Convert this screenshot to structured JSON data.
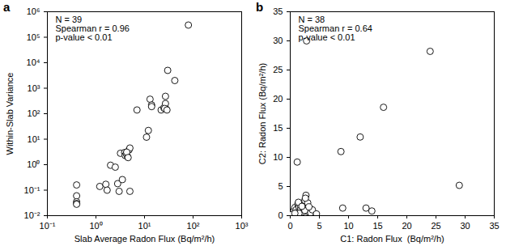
{
  "chart_data": [
    {
      "type": "scatter",
      "title": "a",
      "log": true,
      "marker": "open circle",
      "color": "#000000",
      "x_label": "Slab Average Radon Flux (Bq/m²/h)",
      "y_label": "Within-Slab Variance",
      "annotations": [
        "N = 39",
        "Spearman r = 0.96",
        "p-value < 0.01"
      ],
      "x": [
        0.4,
        0.4,
        0.4,
        0.4,
        0.4,
        1.2,
        1.6,
        1.7,
        2,
        2.5,
        2.8,
        3,
        3.2,
        3.5,
        3.9,
        4,
        4.2,
        4.5,
        4.8,
        5,
        5,
        7,
        11,
        12,
        13,
        14,
        22,
        25,
        27,
        27,
        28,
        30,
        42,
        80,
        4.3,
        4.6,
        14,
        26,
        29
      ],
      "values": [
        0.16,
        0.06,
        0.035,
        0.03,
        0.028,
        0.14,
        0.17,
        0.1,
        0.95,
        0.8,
        0.18,
        0.09,
        2.8,
        0.26,
        3,
        2.3,
        2.7,
        2,
        3.8,
        4.5,
        0.09,
        140,
        12,
        22,
        370,
        220,
        140,
        170,
        250,
        480,
        150,
        5000,
        2000,
        300000,
        3.1,
        1.9,
        190,
        160,
        140
      ],
      "xlim": [
        0.1,
        1000
      ],
      "xticks": [
        {
          "value": 0.1,
          "label": "10⁻¹"
        },
        {
          "value": 1,
          "label": "10⁰"
        },
        {
          "value": 10,
          "label": "10¹"
        },
        {
          "value": 100,
          "label": "10²"
        },
        {
          "value": 1000,
          "label": "10³"
        }
      ],
      "ylim": [
        0.01,
        1000000
      ],
      "yticks": [
        {
          "value": 0.01,
          "label": "10⁻²"
        },
        {
          "value": 0.1,
          "label": "10⁻¹"
        },
        {
          "value": 1,
          "label": "10⁰"
        },
        {
          "value": 10,
          "label": "10¹"
        },
        {
          "value": 100,
          "label": "10²"
        },
        {
          "value": 1000,
          "label": "10³"
        },
        {
          "value": 10000,
          "label": "10⁴"
        },
        {
          "value": 100000,
          "label": "10⁵"
        },
        {
          "value": 1000000,
          "label": "10⁶"
        }
      ]
    },
    {
      "type": "scatter",
      "title": "b",
      "marker": "open circle",
      "color": "#000000",
      "x_label": "C1: Radon Flux  (Bq/m²/h)",
      "y_label": "C2: Radon Flux (Bq/m²/h)",
      "annotations": [
        "N = 38",
        "Spearman r = 0.64",
        "p-value < 0.01"
      ],
      "x": [
        0.5,
        0.6,
        0.8,
        1,
        1.2,
        1.3,
        1.5,
        1.8,
        2,
        2,
        2.2,
        2.5,
        2.7,
        2.8,
        3,
        3,
        3.5,
        3.8,
        4.5,
        8.7,
        9,
        12,
        13,
        14,
        16,
        24,
        29,
        0.3,
        1,
        1.5,
        2.3,
        2.5,
        1.7,
        1.4,
        0.8,
        3.2,
        2.6,
        2
      ],
      "values": [
        0.3,
        0.8,
        1.4,
        1,
        9.2,
        2,
        1.5,
        1.2,
        2.1,
        0.6,
        1.8,
        2.6,
        3.5,
        30,
        2.2,
        0.7,
        0.5,
        1,
        0.3,
        11,
        1.3,
        13.5,
        1.3,
        0.8,
        18.6,
        28.2,
        5.2,
        0.2,
        0.5,
        0.4,
        1.3,
        0.9,
        1.8,
        2.3,
        0.4,
        1.5,
        3,
        1.6
      ],
      "xlim": [
        0,
        35
      ],
      "xticks": [
        0,
        5,
        10,
        15,
        20,
        25,
        30,
        35
      ],
      "ylim": [
        0,
        35
      ],
      "yticks": [
        0,
        5,
        10,
        15,
        20,
        25,
        30,
        35
      ]
    }
  ]
}
